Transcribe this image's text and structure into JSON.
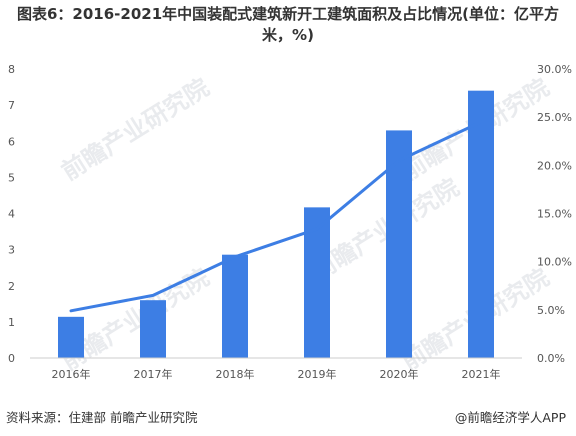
{
  "header": {
    "title": "图表6：2016-2021年中国装配式建筑新开工建筑面积及占比情况(单位：亿平方米，%)"
  },
  "footer": {
    "source": "资料来源：住建部 前瞻产业研究院",
    "brand": "@前瞻经济学人APP"
  },
  "watermark": {
    "text": "前瞻产业研究院"
  },
  "colors": {
    "bar": "#3d7ee4",
    "line": "#3d7ee4",
    "text": "#333333"
  },
  "chart_data": {
    "type": "bar",
    "categories": [
      "2016年",
      "2017年",
      "2018年",
      "2019年",
      "2020年",
      "2021年"
    ],
    "series": [
      {
        "type": "bar",
        "axis": "left",
        "values": [
          1.14,
          1.6,
          2.86,
          4.17,
          6.3,
          7.4
        ]
      },
      {
        "type": "line",
        "axis": "right",
        "values": [
          4.9,
          6.5,
          10.5,
          13.4,
          20.5,
          24.5
        ]
      }
    ],
    "y_left": {
      "ylim": [
        0,
        8
      ],
      "ticks": [
        "0",
        "1",
        "2",
        "3",
        "4",
        "5",
        "6",
        "7",
        "8"
      ]
    },
    "y_right": {
      "ylim": [
        0,
        30
      ],
      "ticks": [
        "0.0%",
        "5.0%",
        "10.0%",
        "15.0%",
        "20.0%",
        "25.0%",
        "30.0%"
      ]
    },
    "grid": false,
    "legend": "none"
  }
}
